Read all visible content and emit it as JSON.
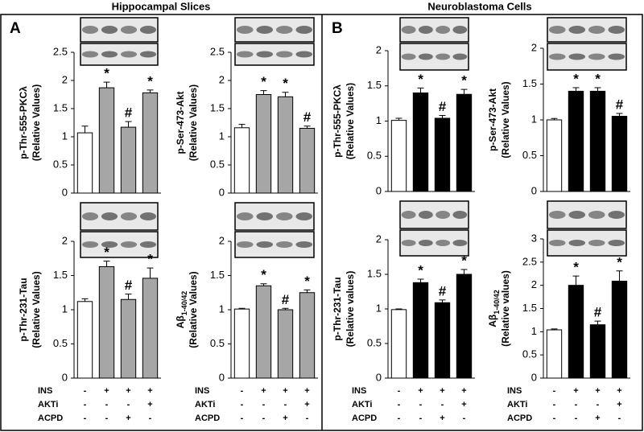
{
  "panels": [
    {
      "letter": "A",
      "title": "Hippocampal Slices"
    },
    {
      "letter": "B",
      "title": "Neuroblastoma Cells"
    }
  ],
  "treatments": [
    {
      "name": "INS",
      "signs": [
        "-",
        "+",
        "+",
        "+"
      ]
    },
    {
      "name": "AKTi",
      "signs": [
        "-",
        "-",
        "-",
        "+"
      ]
    },
    {
      "name": "ACPD",
      "signs": [
        "-",
        "-",
        "+",
        "-"
      ]
    }
  ],
  "chart_data": [
    {
      "type": "bar",
      "ylabel_lines": [
        "p-Thr-555-PKCλ",
        "(Relative Values)"
      ],
      "categories": [
        null,
        null,
        null,
        null
      ],
      "values": [
        1.07,
        1.87,
        1.17,
        1.78
      ],
      "errors": [
        0.12,
        0.1,
        0.1,
        0.05
      ],
      "annotations": [
        null,
        "*",
        "#",
        "*"
      ],
      "colors": [
        "#ffffff",
        "#a6a6a6",
        "#a6a6a6",
        "#a6a6a6"
      ],
      "ylim": [
        0,
        2.5
      ],
      "yticks": [
        0,
        0.5,
        1,
        1.5,
        2,
        2.5
      ]
    },
    {
      "type": "bar",
      "ylabel_lines": [
        "p-Ser-473-Akt",
        "(Relative Values)"
      ],
      "categories": [
        null,
        null,
        null,
        null
      ],
      "values": [
        1.16,
        1.75,
        1.71,
        1.15
      ],
      "errors": [
        0.06,
        0.07,
        0.08,
        0.04
      ],
      "annotations": [
        null,
        "*",
        "*",
        "#"
      ],
      "colors": [
        "#ffffff",
        "#a6a6a6",
        "#a6a6a6",
        "#a6a6a6"
      ],
      "ylim": [
        0,
        2.5
      ],
      "yticks": [
        0,
        0.5,
        1,
        1.5,
        2,
        2.5
      ]
    },
    {
      "type": "bar",
      "ylabel_lines": [
        "p-Thr-231-Tau",
        "(Relative Values)"
      ],
      "categories": [
        null,
        null,
        null,
        null
      ],
      "values": [
        1.12,
        1.63,
        1.15,
        1.46
      ],
      "errors": [
        0.04,
        0.08,
        0.08,
        0.15
      ],
      "annotations": [
        null,
        "*",
        "#",
        "*"
      ],
      "colors": [
        "#ffffff",
        "#a6a6a6",
        "#a6a6a6",
        "#a6a6a6"
      ],
      "ylim": [
        0,
        2
      ],
      "yticks": [
        0,
        0.5,
        1,
        1.5,
        2
      ]
    },
    {
      "type": "bar",
      "ylabel_lines": [
        "Aβ",
        "(Relative Values)"
      ],
      "ylabel_sub": "1-40/42",
      "categories": [
        null,
        null,
        null,
        null
      ],
      "values": [
        1.01,
        1.35,
        1.0,
        1.25
      ],
      "errors": [
        0.01,
        0.03,
        0.02,
        0.04
      ],
      "annotations": [
        null,
        "*",
        "#",
        "*"
      ],
      "colors": [
        "#ffffff",
        "#a6a6a6",
        "#a6a6a6",
        "#a6a6a6"
      ],
      "ylim": [
        0,
        2
      ],
      "yticks": [
        0,
        0.5,
        1,
        1.5,
        2
      ]
    },
    {
      "type": "bar",
      "ylabel_lines": [
        "p-Thr-555-PKCλ",
        "(Relative Values)"
      ],
      "categories": [
        null,
        null,
        null,
        null
      ],
      "values": [
        1.01,
        1.4,
        1.04,
        1.38
      ],
      "errors": [
        0.03,
        0.07,
        0.04,
        0.07
      ],
      "annotations": [
        null,
        "*",
        "#",
        "*"
      ],
      "colors": [
        "#ffffff",
        "#000000",
        "#000000",
        "#000000"
      ],
      "ylim": [
        0,
        2
      ],
      "yticks": [
        0,
        0.5,
        1,
        1.5,
        2
      ]
    },
    {
      "type": "bar",
      "ylabel_lines": [
        "p-Ser-473-Akt",
        "(Relative Values)"
      ],
      "categories": [
        null,
        null,
        null,
        null
      ],
      "values": [
        1.0,
        1.4,
        1.4,
        1.05
      ],
      "errors": [
        0.02,
        0.05,
        0.05,
        0.04
      ],
      "annotations": [
        null,
        "*",
        "*",
        "#"
      ],
      "colors": [
        "#ffffff",
        "#000000",
        "#000000",
        "#000000"
      ],
      "ylim": [
        0,
        2
      ],
      "yticks": [
        0,
        0.5,
        1,
        1.5,
        2
      ]
    },
    {
      "type": "bar",
      "ylabel_lines": [
        "p-Thr-231-Tau",
        "(Relative values)"
      ],
      "categories": [
        null,
        null,
        null,
        null
      ],
      "values": [
        0.99,
        1.38,
        1.09,
        1.5
      ],
      "errors": [
        0.01,
        0.05,
        0.04,
        0.07
      ],
      "annotations": [
        null,
        "*",
        "#",
        "*"
      ],
      "colors": [
        "#ffffff",
        "#000000",
        "#000000",
        "#000000"
      ],
      "ylim": [
        0,
        2
      ],
      "yticks": [
        0,
        0.5,
        1,
        1.5,
        2
      ]
    },
    {
      "type": "bar",
      "ylabel_lines": [
        "Aβ",
        "(Relative values)"
      ],
      "ylabel_sub": "1-40/42",
      "categories": [
        null,
        null,
        null,
        null
      ],
      "values": [
        1.04,
        2.0,
        1.15,
        2.09
      ],
      "errors": [
        0.02,
        0.2,
        0.08,
        0.22
      ],
      "annotations": [
        null,
        "*",
        "#",
        "*"
      ],
      "colors": [
        "#ffffff",
        "#000000",
        "#000000",
        "#000000"
      ],
      "ylim": [
        0,
        3
      ],
      "yticks": [
        0,
        0.5,
        1,
        1.5,
        2,
        2.5,
        3
      ]
    }
  ]
}
